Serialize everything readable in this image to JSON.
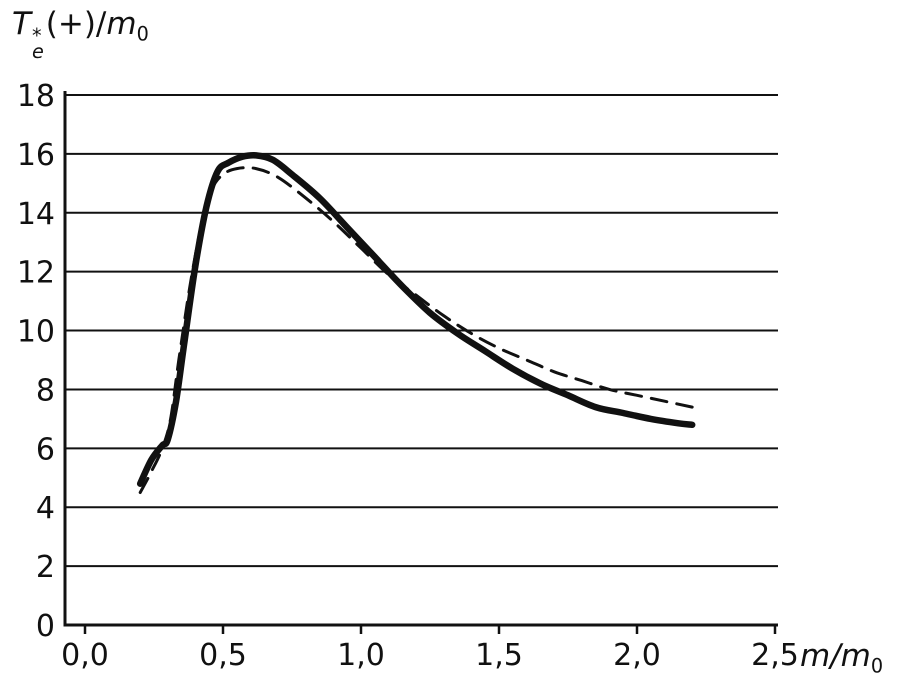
{
  "labels": {
    "y_title": {
      "base": "T",
      "sup": "*",
      "sub": "e",
      "mid": "(+)/",
      "denom": "m",
      "denom_sub": "0"
    },
    "x_title": {
      "main": "m/m",
      "sub": "0"
    }
  },
  "colors": {
    "ink": "#111111",
    "grid": "#111111",
    "background": "#ffffff"
  },
  "chart_data": {
    "type": "line",
    "title": "",
    "xlabel": "m/m0",
    "ylabel": "T_e^*(+)/m_0",
    "xlim": [
      0,
      2.5
    ],
    "ylim": [
      0,
      18
    ],
    "grid": "horizontal",
    "legend": "none",
    "x_ticks": [
      0,
      0.5,
      1.0,
      1.5,
      2.0,
      2.5
    ],
    "x_tick_labels": [
      "0,0",
      "0,5",
      "1,0",
      "1,5",
      "2,0",
      "2,5"
    ],
    "y_ticks": [
      0,
      2,
      4,
      6,
      8,
      10,
      12,
      14,
      16,
      18
    ],
    "y_tick_labels": [
      "0",
      "2",
      "4",
      "6",
      "8",
      "10",
      "12",
      "14",
      "16",
      "18"
    ],
    "series": [
      {
        "name": "solid curve",
        "style": "solid",
        "width": 6.5,
        "points": [
          [
            0.2,
            4.8
          ],
          [
            0.24,
            5.6
          ],
          [
            0.28,
            6.1
          ],
          [
            0.3,
            6.3
          ],
          [
            0.33,
            7.6
          ],
          [
            0.36,
            9.6
          ],
          [
            0.4,
            12.2
          ],
          [
            0.44,
            14.2
          ],
          [
            0.48,
            15.4
          ],
          [
            0.52,
            15.7
          ],
          [
            0.57,
            15.9
          ],
          [
            0.62,
            15.95
          ],
          [
            0.68,
            15.8
          ],
          [
            0.75,
            15.3
          ],
          [
            0.85,
            14.5
          ],
          [
            0.95,
            13.5
          ],
          [
            1.05,
            12.5
          ],
          [
            1.15,
            11.5
          ],
          [
            1.25,
            10.6
          ],
          [
            1.35,
            9.9
          ],
          [
            1.45,
            9.3
          ],
          [
            1.55,
            8.7
          ],
          [
            1.65,
            8.2
          ],
          [
            1.75,
            7.8
          ],
          [
            1.85,
            7.4
          ],
          [
            1.95,
            7.2
          ],
          [
            2.05,
            7.0
          ],
          [
            2.15,
            6.85
          ],
          [
            2.2,
            6.8
          ]
        ]
      },
      {
        "name": "dashed curve",
        "style": "dashed",
        "width": 3,
        "dash": [
          16,
          10
        ],
        "points": [
          [
            0.2,
            4.5
          ],
          [
            0.24,
            5.2
          ],
          [
            0.28,
            6.0
          ],
          [
            0.31,
            7.0
          ],
          [
            0.34,
            9.0
          ],
          [
            0.38,
            11.5
          ],
          [
            0.42,
            13.5
          ],
          [
            0.46,
            14.8
          ],
          [
            0.5,
            15.3
          ],
          [
            0.55,
            15.5
          ],
          [
            0.62,
            15.5
          ],
          [
            0.7,
            15.2
          ],
          [
            0.8,
            14.5
          ],
          [
            0.9,
            13.7
          ],
          [
            1.0,
            12.8
          ],
          [
            1.1,
            11.9
          ],
          [
            1.2,
            11.2
          ],
          [
            1.3,
            10.5
          ],
          [
            1.4,
            9.9
          ],
          [
            1.5,
            9.4
          ],
          [
            1.6,
            9.0
          ],
          [
            1.7,
            8.6
          ],
          [
            1.8,
            8.3
          ],
          [
            1.9,
            8.0
          ],
          [
            2.0,
            7.8
          ],
          [
            2.1,
            7.6
          ],
          [
            2.2,
            7.4
          ]
        ]
      }
    ]
  }
}
